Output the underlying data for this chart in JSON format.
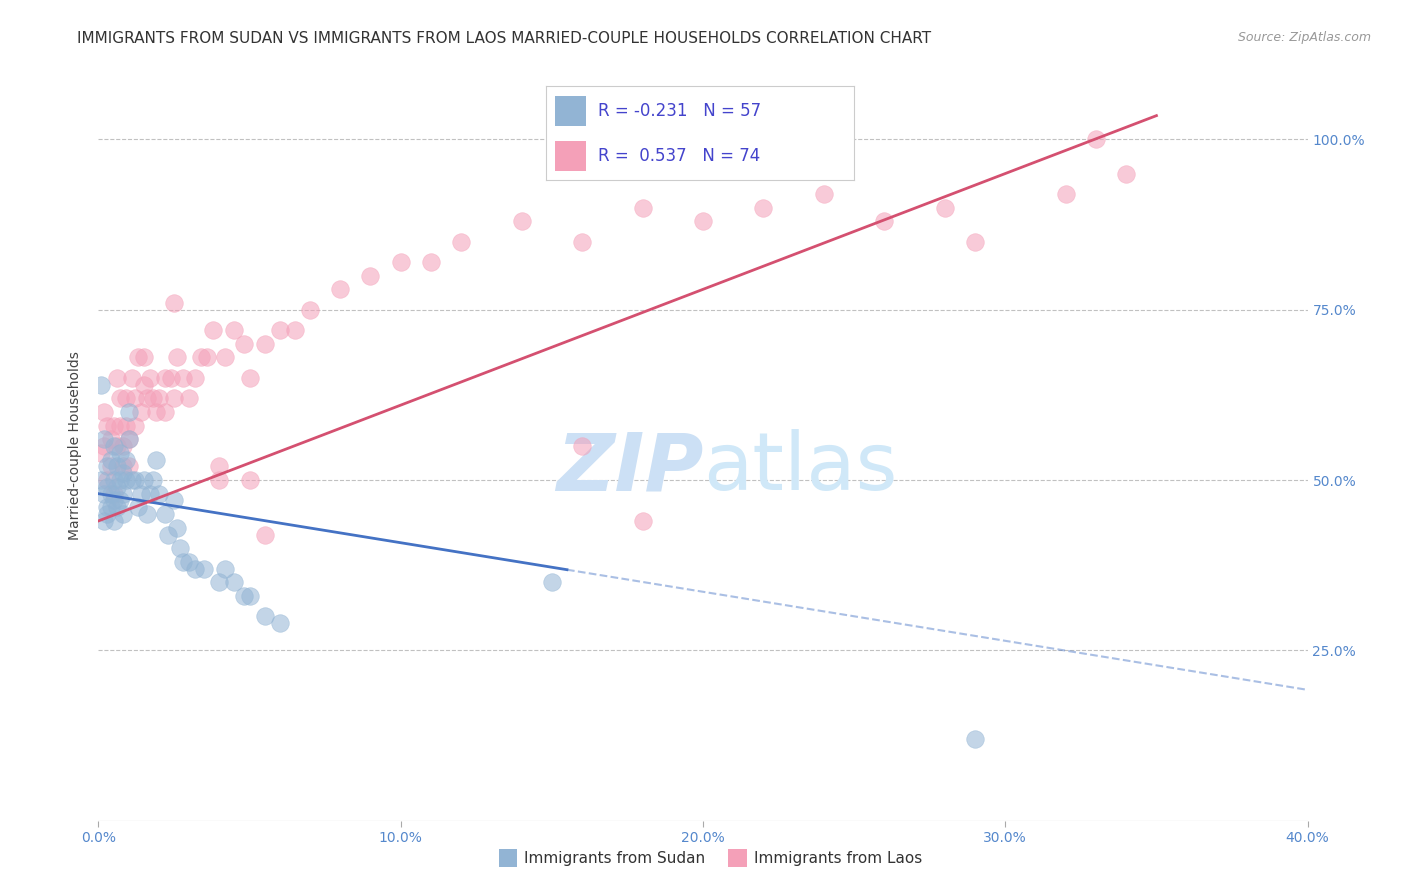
{
  "title": "IMMIGRANTS FROM SUDAN VS IMMIGRANTS FROM LAOS MARRIED-COUPLE HOUSEHOLDS CORRELATION CHART",
  "source": "Source: ZipAtlas.com",
  "ylabel": "Married-couple Households",
  "x_min": 0.0,
  "x_max": 0.4,
  "y_min": 0.0,
  "y_max": 1.1,
  "x_ticks": [
    0.0,
    0.1,
    0.2,
    0.3,
    0.4
  ],
  "x_tick_labels": [
    "0.0%",
    "10.0%",
    "20.0%",
    "30.0%",
    "40.0%"
  ],
  "y_ticks": [
    0.25,
    0.5,
    0.75,
    1.0
  ],
  "y_tick_labels": [
    "25.0%",
    "50.0%",
    "75.0%",
    "100.0%"
  ],
  "sudan_color": "#92b4d4",
  "laos_color": "#f4a0b8",
  "sudan_line_color": "#4472c4",
  "laos_line_color": "#d45070",
  "background_color": "#ffffff",
  "grid_color": "#bbbbbb",
  "watermark_color": "#cce0f5",
  "title_fontsize": 11,
  "axis_label_fontsize": 10,
  "tick_fontsize": 10,
  "legend_r_sudan": "-0.231",
  "legend_n_sudan": "57",
  "legend_r_laos": "0.537",
  "legend_n_laos": "74",
  "legend_text_color": "#4444cc",
  "sudo_line_intercept": 0.48,
  "sudo_line_slope": -0.72,
  "laos_line_intercept": 0.44,
  "laos_line_slope": 1.7,
  "sudan_scatter": {
    "x": [
      0.001,
      0.001,
      0.002,
      0.002,
      0.002,
      0.003,
      0.003,
      0.003,
      0.003,
      0.004,
      0.004,
      0.004,
      0.005,
      0.005,
      0.005,
      0.005,
      0.006,
      0.006,
      0.006,
      0.007,
      0.007,
      0.007,
      0.008,
      0.008,
      0.008,
      0.009,
      0.009,
      0.01,
      0.01,
      0.011,
      0.012,
      0.013,
      0.014,
      0.015,
      0.016,
      0.017,
      0.018,
      0.019,
      0.02,
      0.022,
      0.023,
      0.025,
      0.026,
      0.027,
      0.028,
      0.03,
      0.032,
      0.035,
      0.04,
      0.042,
      0.045,
      0.048,
      0.05,
      0.055,
      0.06,
      0.15,
      0.29
    ],
    "y": [
      0.64,
      0.5,
      0.56,
      0.48,
      0.44,
      0.52,
      0.49,
      0.46,
      0.45,
      0.53,
      0.48,
      0.46,
      0.55,
      0.5,
      0.47,
      0.44,
      0.52,
      0.49,
      0.46,
      0.54,
      0.5,
      0.47,
      0.51,
      0.48,
      0.45,
      0.53,
      0.5,
      0.56,
      0.6,
      0.5,
      0.5,
      0.46,
      0.48,
      0.5,
      0.45,
      0.48,
      0.5,
      0.53,
      0.48,
      0.45,
      0.42,
      0.47,
      0.43,
      0.4,
      0.38,
      0.38,
      0.37,
      0.37,
      0.35,
      0.37,
      0.35,
      0.33,
      0.33,
      0.3,
      0.29,
      0.35,
      0.12
    ]
  },
  "laos_scatter": {
    "x": [
      0.001,
      0.002,
      0.002,
      0.003,
      0.003,
      0.004,
      0.004,
      0.005,
      0.005,
      0.006,
      0.006,
      0.007,
      0.007,
      0.008,
      0.008,
      0.009,
      0.009,
      0.01,
      0.01,
      0.011,
      0.012,
      0.012,
      0.013,
      0.014,
      0.015,
      0.015,
      0.016,
      0.017,
      0.018,
      0.019,
      0.02,
      0.022,
      0.022,
      0.024,
      0.025,
      0.026,
      0.028,
      0.03,
      0.032,
      0.034,
      0.036,
      0.038,
      0.04,
      0.042,
      0.045,
      0.048,
      0.05,
      0.055,
      0.06,
      0.065,
      0.07,
      0.08,
      0.09,
      0.1,
      0.11,
      0.12,
      0.14,
      0.16,
      0.18,
      0.2,
      0.22,
      0.24,
      0.26,
      0.28,
      0.29,
      0.32,
      0.34,
      0.055,
      0.04,
      0.16,
      0.18,
      0.05,
      0.025,
      0.33
    ],
    "y": [
      0.54,
      0.6,
      0.55,
      0.58,
      0.5,
      0.56,
      0.52,
      0.58,
      0.48,
      0.65,
      0.55,
      0.62,
      0.58,
      0.55,
      0.52,
      0.62,
      0.58,
      0.56,
      0.52,
      0.65,
      0.62,
      0.58,
      0.68,
      0.6,
      0.68,
      0.64,
      0.62,
      0.65,
      0.62,
      0.6,
      0.62,
      0.65,
      0.6,
      0.65,
      0.62,
      0.68,
      0.65,
      0.62,
      0.65,
      0.68,
      0.68,
      0.72,
      0.52,
      0.68,
      0.72,
      0.7,
      0.65,
      0.7,
      0.72,
      0.72,
      0.75,
      0.78,
      0.8,
      0.82,
      0.82,
      0.85,
      0.88,
      0.85,
      0.9,
      0.88,
      0.9,
      0.92,
      0.88,
      0.9,
      0.85,
      0.92,
      0.95,
      0.42,
      0.5,
      0.55,
      0.44,
      0.5,
      0.76,
      1.0
    ]
  }
}
